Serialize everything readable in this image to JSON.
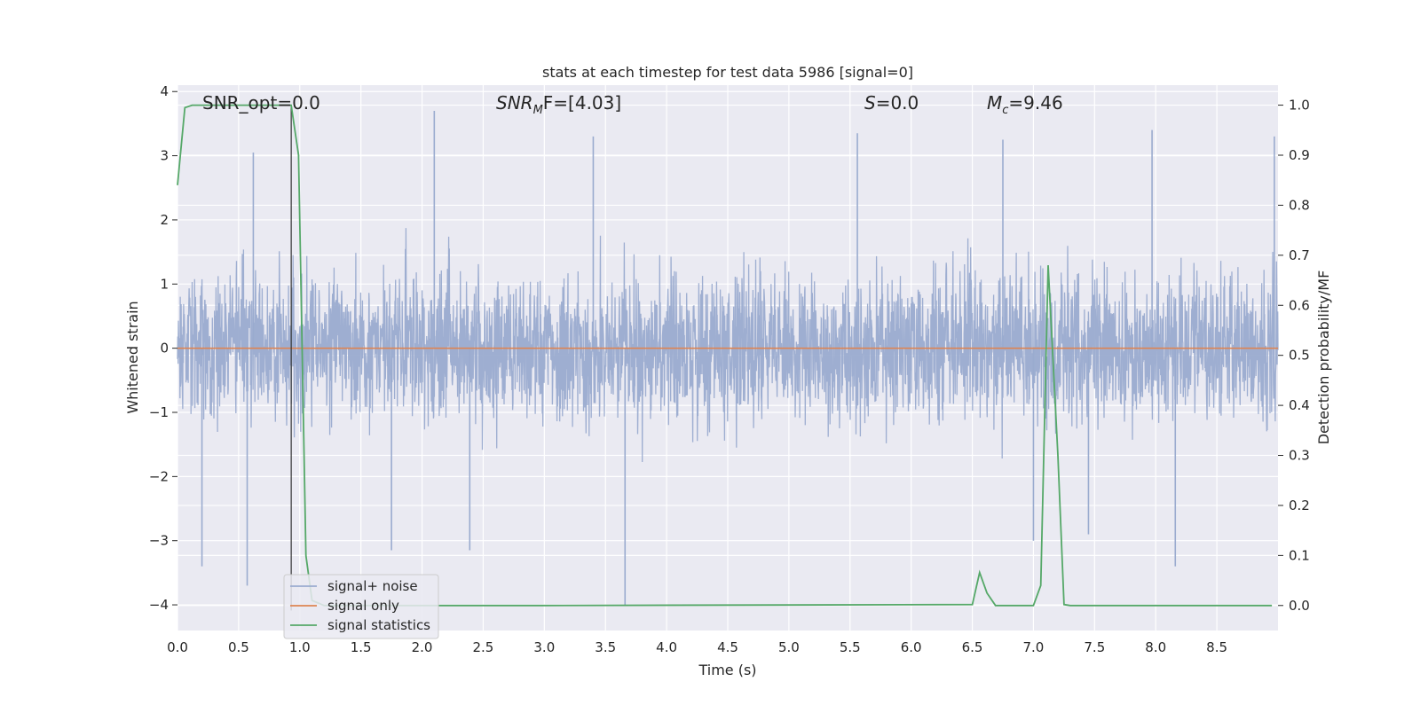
{
  "chart_data": {
    "type": "line",
    "title": "stats at each timestep for test data 5986 [signal=0]",
    "xlabel": "Time (s)",
    "ylabel": "Whitened strain",
    "y2label": "Detection probability/MF",
    "xlim": [
      0,
      9.0
    ],
    "ylim": [
      -4.4,
      4.1
    ],
    "y2lim": [
      -0.05,
      1.04
    ],
    "x_ticks": [
      0.0,
      0.5,
      1.0,
      1.5,
      2.0,
      2.5,
      3.0,
      3.5,
      4.0,
      4.5,
      5.0,
      5.5,
      6.0,
      6.5,
      7.0,
      7.5,
      8.0,
      8.5
    ],
    "x_tick_labels": [
      "0.0",
      "0.5",
      "1.0",
      "1.5",
      "2.0",
      "2.5",
      "3.0",
      "3.5",
      "4.0",
      "4.5",
      "5.0",
      "5.5",
      "6.0",
      "6.5",
      "7.0",
      "7.5",
      "8.0",
      "8.5"
    ],
    "y_ticks": [
      4,
      3,
      2,
      1,
      0,
      -1,
      -2,
      -3,
      -4
    ],
    "y_tick_labels": [
      "4",
      "3",
      "2",
      "1",
      "0",
      "−1",
      "−2",
      "−3",
      "−4"
    ],
    "y2_ticks": [
      1.0,
      0.9,
      0.8,
      0.7,
      0.6,
      0.5,
      0.4,
      0.3,
      0.2,
      0.1,
      0.0
    ],
    "y2_tick_labels": [
      "1.0",
      "0.9",
      "0.8",
      "0.7",
      "0.6",
      "0.5",
      "0.4",
      "0.3",
      "0.2",
      "0.1",
      "0.0"
    ],
    "grid": true,
    "legend_position": "lower-left",
    "annotations": {
      "snr_opt": "SNR_opt=0.0",
      "snr_mf_main": "SNR",
      "snr_mf_sub": "M",
      "snr_mf_rest": "F=[4.03]",
      "s_main": "S",
      "s_rest": "=0.0",
      "mc_main": "M",
      "mc_sub": "c",
      "mc_rest": "=9.46"
    },
    "vertical_marker_x": 0.93,
    "series": [
      {
        "name": "signal+ noise",
        "color": "#9aabcf",
        "axis": "left",
        "kind": "noise",
        "typical_range": [
          -2.4,
          2.2
        ],
        "extremes": [
          {
            "x": 0.2,
            "y": -3.4
          },
          {
            "x": 0.57,
            "y": -3.7
          },
          {
            "x": 0.62,
            "y": 3.05
          },
          {
            "x": 1.75,
            "y": -3.15
          },
          {
            "x": 2.1,
            "y": 3.7
          },
          {
            "x": 2.39,
            "y": -3.15
          },
          {
            "x": 3.66,
            "y": -4.0
          },
          {
            "x": 3.4,
            "y": 3.3
          },
          {
            "x": 5.56,
            "y": 3.35
          },
          {
            "x": 6.75,
            "y": 3.25
          },
          {
            "x": 7.0,
            "y": -3.0
          },
          {
            "x": 7.45,
            "y": -2.9
          },
          {
            "x": 7.97,
            "y": 3.4
          },
          {
            "x": 8.16,
            "y": -3.4
          },
          {
            "x": 8.97,
            "y": 3.3
          }
        ]
      },
      {
        "name": "signal only",
        "color": "#dd8452",
        "axis": "left",
        "x": [
          0.0,
          9.0
        ],
        "y": [
          0.0,
          0.0
        ]
      },
      {
        "name": "signal statistics",
        "color": "#55a868",
        "axis": "right",
        "x": [
          0.0,
          0.06,
          0.12,
          0.5,
          0.93,
          0.99,
          1.05,
          1.1,
          1.2,
          3.0,
          6.5,
          6.56,
          6.62,
          6.69,
          7.0,
          7.06,
          7.12,
          7.2,
          7.25,
          7.3,
          8.95
        ],
        "y": [
          0.84,
          0.995,
          1.0,
          1.0,
          1.0,
          0.9,
          0.1,
          0.01,
          0.0,
          0.0,
          0.002,
          0.066,
          0.025,
          0.0,
          0.0,
          0.04,
          0.68,
          0.3,
          0.002,
          0.0,
          0.0
        ]
      }
    ]
  }
}
